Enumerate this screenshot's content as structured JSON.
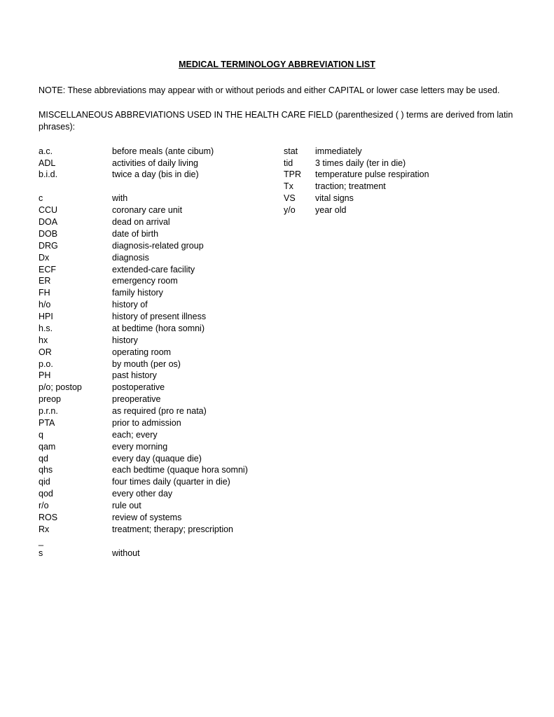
{
  "title": "MEDICAL TERMINOLOGY ABBREVIATION LIST",
  "note": "NOTE:  These abbreviations may appear with or without periods and either CAPITAL or  lower case letters may be used.",
  "section_label": "MISCELLANEOUS ABBREVIATIONS USED IN THE HEALTH CARE FIELD (parenthesized ( ) terms are derived from latin phrases):",
  "left_groups": [
    [
      {
        "abbr": "a.c.",
        "def": "before meals (ante cibum)"
      },
      {
        "abbr": "ADL",
        "def": "activities of daily living"
      },
      {
        "abbr": "b.i.d.",
        "def": "twice a day (bis in die)"
      }
    ],
    [
      {
        "abbr": "c",
        "def": "with"
      },
      {
        "abbr": "CCU",
        "def": "coronary care unit"
      },
      {
        "abbr": "DOA",
        "def": "dead on arrival"
      },
      {
        "abbr": "DOB",
        "def": "date of birth"
      },
      {
        "abbr": "DRG",
        "def": "diagnosis-related group"
      },
      {
        "abbr": "Dx",
        "def": "diagnosis"
      },
      {
        "abbr": "ECF",
        "def": "extended-care facility"
      },
      {
        "abbr": "ER",
        "def": "emergency room"
      },
      {
        "abbr": "FH",
        "def": "family history"
      },
      {
        "abbr": "h/o",
        "def": "history of"
      },
      {
        "abbr": "HPI",
        "def": "history of present illness"
      },
      {
        "abbr": "h.s.",
        "def": "at bedtime (hora somni)"
      },
      {
        "abbr": "hx",
        "def": "history"
      },
      {
        "abbr": "OR",
        "def": "operating room"
      },
      {
        "abbr": "p.o.",
        "def": "by mouth (per os)"
      },
      {
        "abbr": "PH",
        "def": "past history"
      },
      {
        "abbr": "p/o; postop",
        "def": "postoperative"
      },
      {
        "abbr": "preop",
        "def": "preoperative"
      },
      {
        "abbr": "p.r.n.",
        "def": "as required (pro re nata)"
      },
      {
        "abbr": "PTA",
        "def": "prior to admission"
      },
      {
        "abbr": "q",
        "def": "each; every"
      },
      {
        "abbr": "qam",
        "def": "every morning"
      },
      {
        "abbr": "qd",
        "def": "every day (quaque die)"
      },
      {
        "abbr": "qhs",
        "def": "each bedtime (quaque hora somni)"
      },
      {
        "abbr": "qid",
        "def": "four times daily (quarter in die)"
      },
      {
        "abbr": "qod",
        "def": "every other day"
      },
      {
        "abbr": "r/o",
        "def": "rule out"
      },
      {
        "abbr": "ROS",
        "def": "review of systems"
      },
      {
        "abbr": "Rx",
        "def": "treatment; therapy; prescription"
      },
      {
        "abbr": "_",
        "def": ""
      },
      {
        "abbr": "s",
        "def": "without"
      }
    ]
  ],
  "right_groups": [
    [
      {
        "abbr": "stat",
        "def": "immediately"
      },
      {
        "abbr": "tid",
        "def": "3 times daily (ter in die)"
      },
      {
        "abbr": "TPR",
        "def": "temperature pulse respiration"
      },
      {
        "abbr": "Tx",
        "def": "traction; treatment"
      },
      {
        "abbr": "VS",
        "def": "vital signs"
      },
      {
        "abbr": "y/o",
        "def": "year old"
      }
    ]
  ]
}
